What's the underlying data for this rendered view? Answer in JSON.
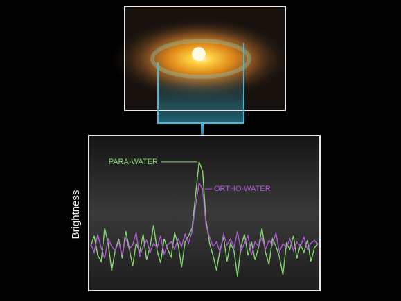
{
  "chart_data": {
    "type": "line",
    "y_label": "Brightness",
    "annotations": [
      {
        "text": "PARA-WATER",
        "series": 0,
        "index": 31
      },
      {
        "text": "ORTHO-WATER",
        "series": 1,
        "index": 32
      }
    ],
    "x": [
      0,
      1,
      2,
      3,
      4,
      5,
      6,
      7,
      8,
      9,
      10,
      11,
      12,
      13,
      14,
      15,
      16,
      17,
      18,
      19,
      20,
      21,
      22,
      23,
      24,
      25,
      26,
      27,
      28,
      29,
      30,
      31,
      32,
      33,
      34,
      35,
      36,
      37,
      38,
      39,
      40,
      41,
      42,
      43,
      44,
      45,
      46,
      47,
      48,
      49,
      50,
      51,
      52,
      53,
      54,
      55,
      56,
      57,
      58,
      59,
      60,
      61,
      62,
      63,
      64,
      65
    ],
    "xlim": [
      0,
      65
    ],
    "ylim": [
      0,
      100
    ],
    "series": [
      {
        "name": "PARA-WATER",
        "color": "#86d86e",
        "values": [
          28,
          35,
          22,
          18,
          40,
          30,
          12,
          25,
          33,
          20,
          38,
          27,
          15,
          30,
          24,
          36,
          19,
          28,
          42,
          25,
          17,
          33,
          26,
          21,
          37,
          29,
          14,
          31,
          35,
          40,
          62,
          84,
          78,
          45,
          30,
          22,
          12,
          26,
          34,
          18,
          30,
          25,
          8,
          28,
          36,
          22,
          31,
          19,
          27,
          40,
          24,
          16,
          33,
          28,
          21,
          9,
          30,
          26,
          35,
          20,
          29,
          24,
          32,
          18,
          27,
          30
        ]
      },
      {
        "name": "ORTHO-WATER",
        "color": "#b05ad8",
        "values": [
          30,
          24,
          36,
          27,
          20,
          33,
          28,
          25,
          31,
          22,
          34,
          26,
          29,
          37,
          21,
          28,
          32,
          24,
          30,
          27,
          35,
          23,
          29,
          31,
          26,
          33,
          28,
          36,
          30,
          38,
          55,
          70,
          66,
          42,
          34,
          28,
          31,
          24,
          36,
          29,
          33,
          27,
          38,
          25,
          30,
          35,
          22,
          31,
          28,
          34,
          26,
          32,
          29,
          37,
          24,
          30,
          27,
          33,
          25,
          31,
          28,
          34,
          26,
          30,
          32,
          29
        ]
      }
    ]
  }
}
